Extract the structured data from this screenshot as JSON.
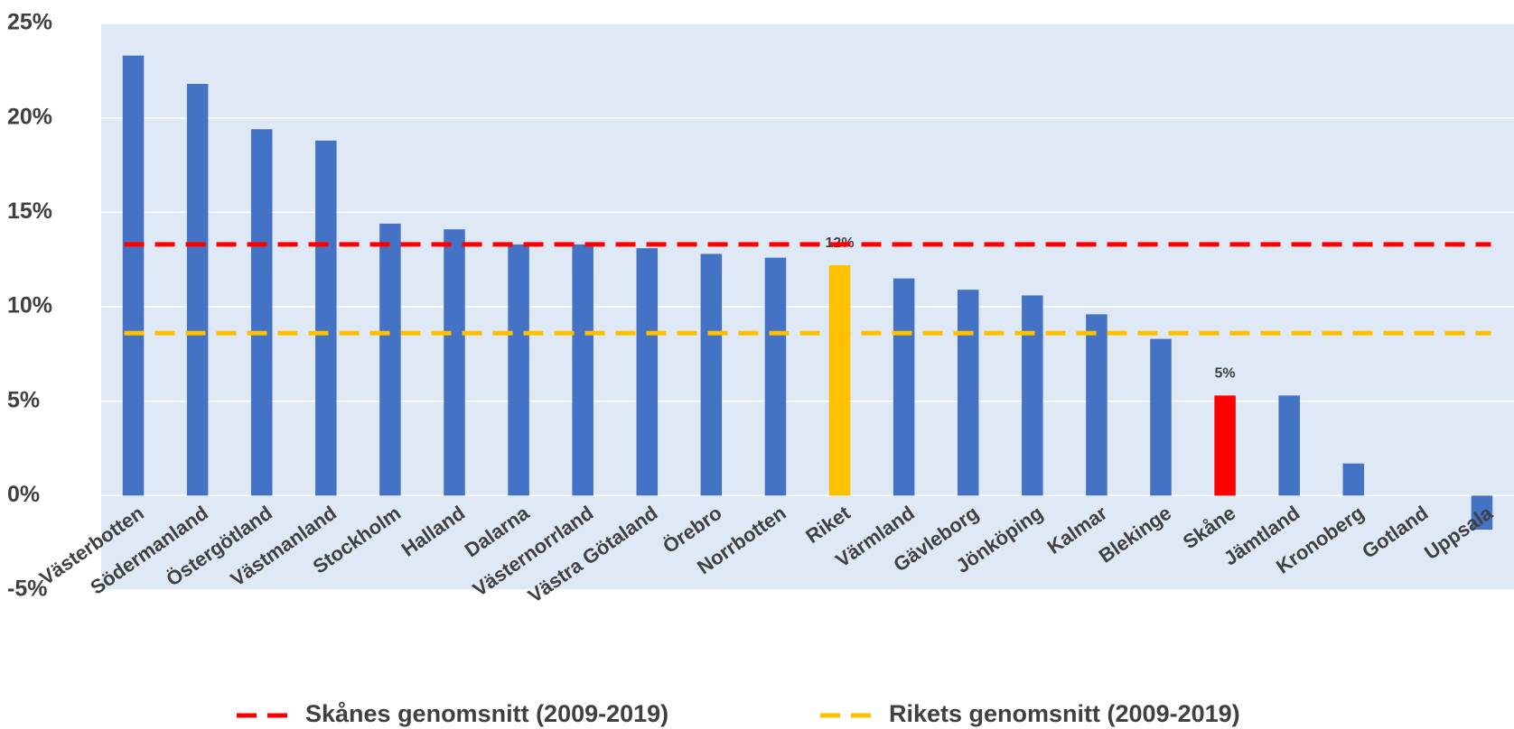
{
  "chart_data": {
    "type": "bar",
    "categories": [
      "Västerbotten",
      "Södermanland",
      "Östergötland",
      "Västmanland",
      "Stockholm",
      "Halland",
      "Dalarna",
      "Västernorrland",
      "Västra Götaland",
      "Örebro",
      "Norrbotten",
      "Riket",
      "Värmland",
      "Gävleborg",
      "Jönköping",
      "Kalmar",
      "Blekinge",
      "Skåne",
      "Jämtland",
      "Kronoberg",
      "Gotland",
      "Uppsala"
    ],
    "values": [
      23.3,
      21.8,
      19.4,
      18.8,
      14.4,
      14.1,
      13.3,
      13.3,
      13.1,
      12.8,
      12.6,
      12.2,
      11.5,
      10.9,
      10.6,
      9.6,
      8.3,
      5.3,
      5.3,
      1.7,
      0,
      -1.8
    ],
    "value_labels": [
      null,
      null,
      null,
      null,
      null,
      null,
      null,
      null,
      null,
      null,
      null,
      "12%",
      null,
      null,
      null,
      null,
      null,
      "5%",
      null,
      null,
      null,
      null
    ],
    "colors": [
      "#4472c4",
      "#4472c4",
      "#4472c4",
      "#4472c4",
      "#4472c4",
      "#4472c4",
      "#4472c4",
      "#4472c4",
      "#4472c4",
      "#4472c4",
      "#4472c4",
      "#ffc000",
      "#4472c4",
      "#4472c4",
      "#4472c4",
      "#4472c4",
      "#4472c4",
      "#ff0000",
      "#4472c4",
      "#4472c4",
      "#4472c4",
      "#4472c4"
    ],
    "reference_lines": [
      {
        "name": "Skånes genomsnitt (2009-2019)",
        "color": "#ff0000",
        "value": 13.3
      },
      {
        "name": "Rikets genomsnitt (2009-2019)",
        "color": "#ffc000",
        "value": 8.6
      }
    ],
    "ylim": [
      -5,
      25
    ],
    "yticks": [
      {
        "value": -5,
        "label": "-5%"
      },
      {
        "value": 0,
        "label": "0%"
      },
      {
        "value": 5,
        "label": "5%"
      },
      {
        "value": 10,
        "label": "10%"
      },
      {
        "value": 15,
        "label": "15%"
      },
      {
        "value": 20,
        "label": "20%"
      },
      {
        "value": 25,
        "label": "25%"
      }
    ],
    "grid": true,
    "plot_background": "#dfe9f5"
  }
}
